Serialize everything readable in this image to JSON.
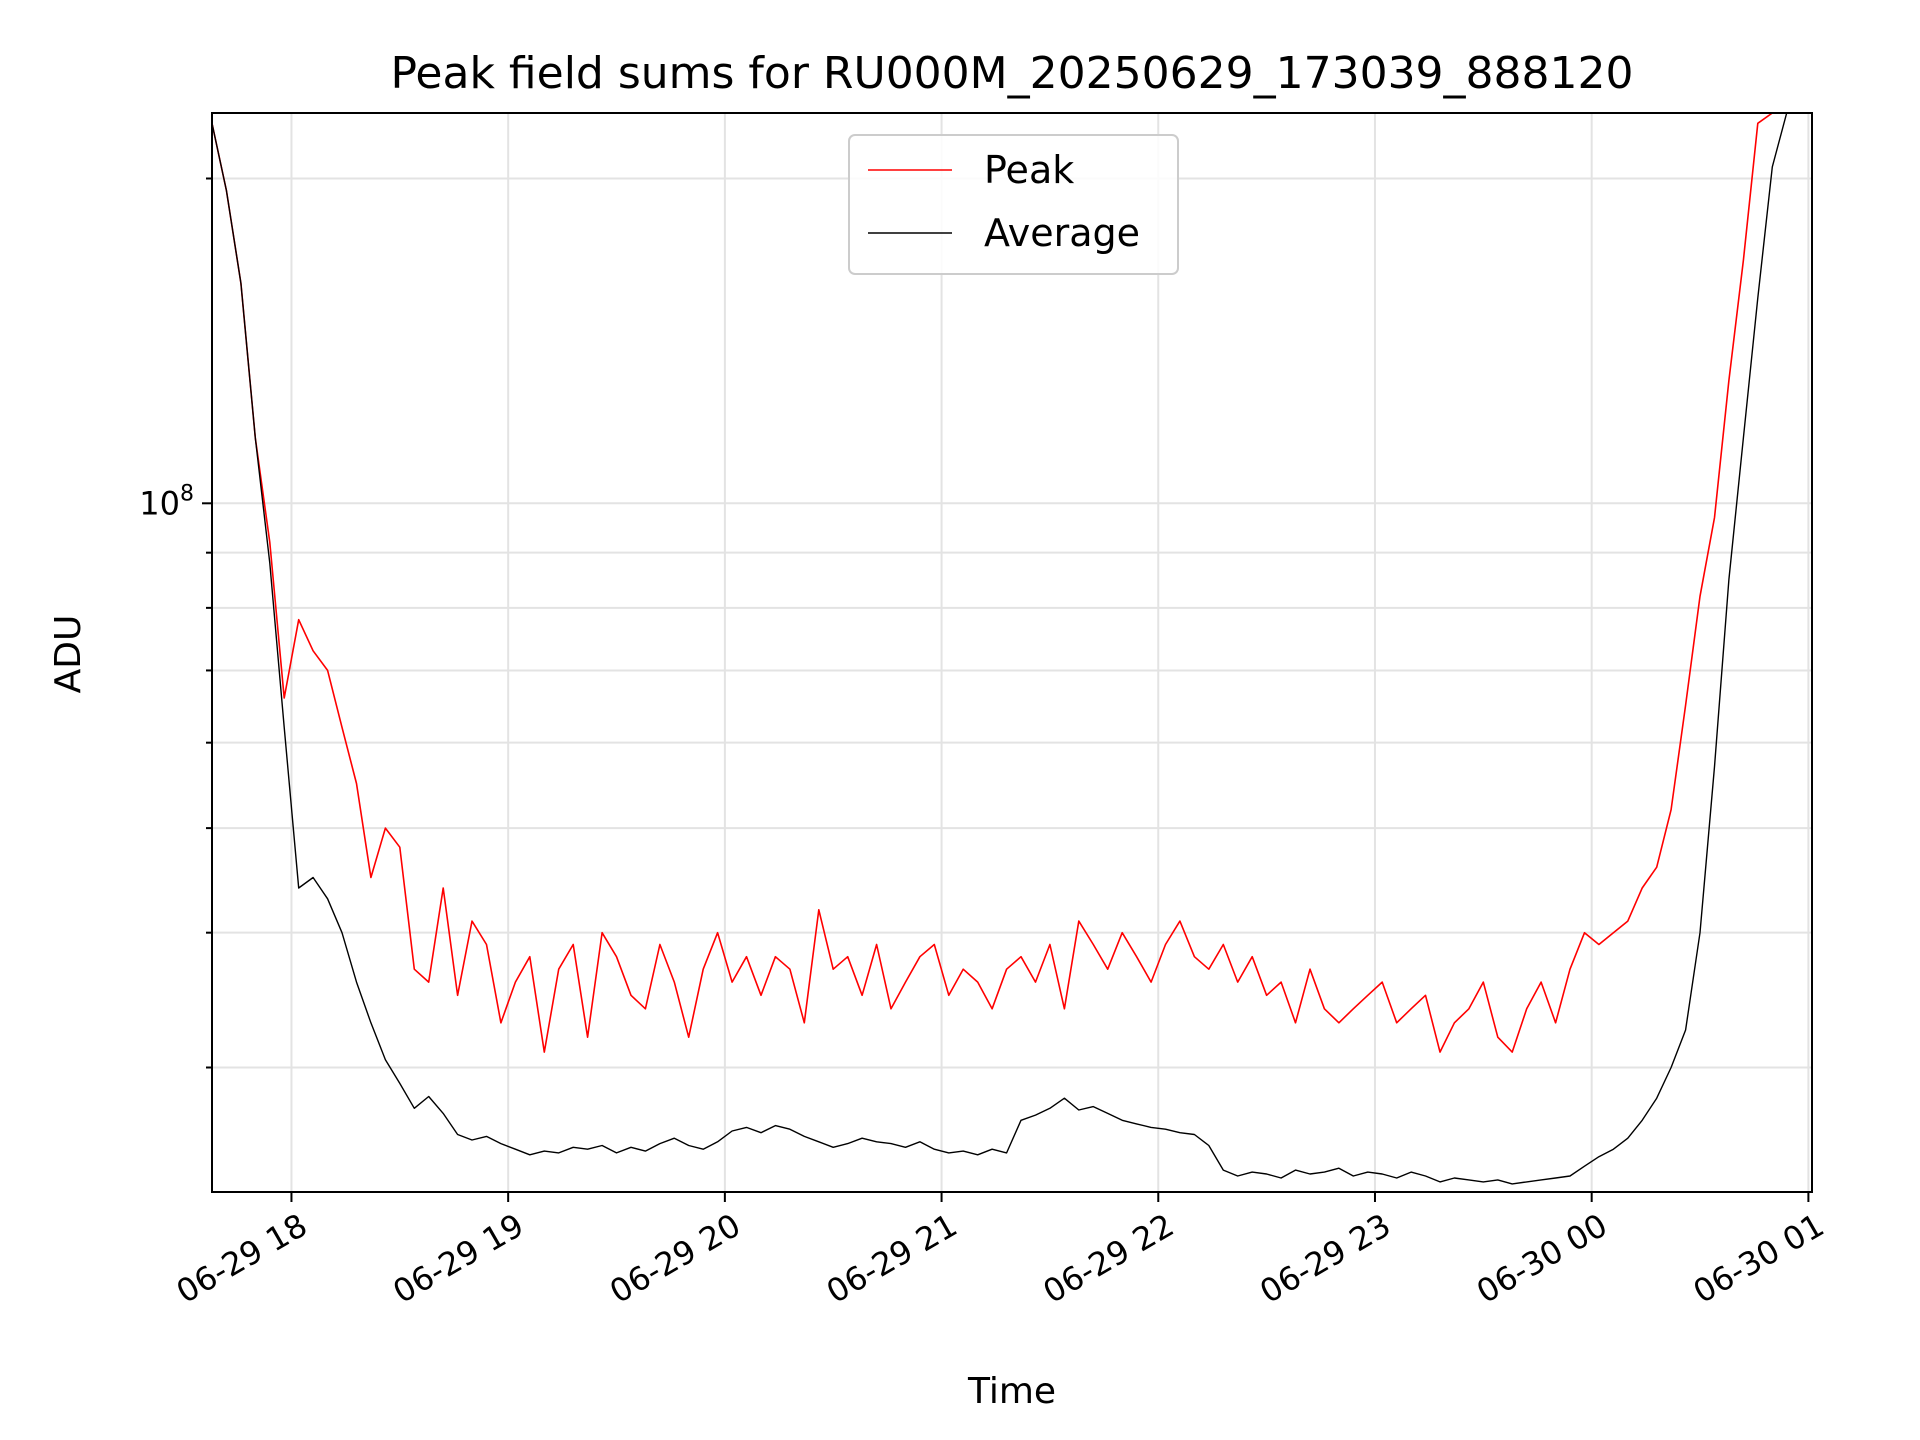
{
  "chart_data": {
    "type": "line",
    "title": "Peak field sums for RU000M_20250629_173039_888120",
    "xlabel": "Time",
    "ylabel": "ADU",
    "y_scale": "log",
    "grid": true,
    "legend_position": "upper center",
    "ylim": [
      23000000,
      230000000
    ],
    "xlim": [
      "2025-06-29 17:38",
      "2025-06-30 01:01"
    ],
    "x_ticks": [
      {
        "value": "2025-06-29 18:00",
        "label": "06-29 18"
      },
      {
        "value": "2025-06-29 19:00",
        "label": "06-29 19"
      },
      {
        "value": "2025-06-29 20:00",
        "label": "06-29 20"
      },
      {
        "value": "2025-06-29 21:00",
        "label": "06-29 21"
      },
      {
        "value": "2025-06-29 22:00",
        "label": "06-29 22"
      },
      {
        "value": "2025-06-29 23:00",
        "label": "06-29 23"
      },
      {
        "value": "2025-06-30 00:00",
        "label": "06-30 00"
      },
      {
        "value": "2025-06-30 01:00",
        "label": "06-30 01"
      }
    ],
    "y_ticks": [
      {
        "value": 100000000,
        "label": "10",
        "exponent": "8"
      }
    ],
    "series": [
      {
        "name": "Peak",
        "color": "#ff0000",
        "x": [
          "2025-06-29 17:38",
          "2025-06-29 17:42",
          "2025-06-29 17:46",
          "2025-06-29 17:50",
          "2025-06-29 17:54",
          "2025-06-29 17:58",
          "2025-06-29 18:02",
          "2025-06-29 18:06",
          "2025-06-29 18:10",
          "2025-06-29 18:14",
          "2025-06-29 18:18",
          "2025-06-29 18:22",
          "2025-06-29 18:26",
          "2025-06-29 18:30",
          "2025-06-29 18:34",
          "2025-06-29 18:38",
          "2025-06-29 18:42",
          "2025-06-29 18:46",
          "2025-06-29 18:50",
          "2025-06-29 18:54",
          "2025-06-29 18:58",
          "2025-06-29 19:02",
          "2025-06-29 19:06",
          "2025-06-29 19:10",
          "2025-06-29 19:14",
          "2025-06-29 19:18",
          "2025-06-29 19:22",
          "2025-06-29 19:26",
          "2025-06-29 19:30",
          "2025-06-29 19:34",
          "2025-06-29 19:38",
          "2025-06-29 19:42",
          "2025-06-29 19:46",
          "2025-06-29 19:50",
          "2025-06-29 19:54",
          "2025-06-29 19:58",
          "2025-06-29 20:02",
          "2025-06-29 20:06",
          "2025-06-29 20:10",
          "2025-06-29 20:14",
          "2025-06-29 20:18",
          "2025-06-29 20:22",
          "2025-06-29 20:26",
          "2025-06-29 20:30",
          "2025-06-29 20:34",
          "2025-06-29 20:38",
          "2025-06-29 20:42",
          "2025-06-29 20:46",
          "2025-06-29 20:50",
          "2025-06-29 20:54",
          "2025-06-29 20:58",
          "2025-06-29 21:02",
          "2025-06-29 21:06",
          "2025-06-29 21:10",
          "2025-06-29 21:14",
          "2025-06-29 21:18",
          "2025-06-29 21:22",
          "2025-06-29 21:26",
          "2025-06-29 21:30",
          "2025-06-29 21:34",
          "2025-06-29 21:38",
          "2025-06-29 21:42",
          "2025-06-29 21:46",
          "2025-06-29 21:50",
          "2025-06-29 21:54",
          "2025-06-29 21:58",
          "2025-06-29 22:02",
          "2025-06-29 22:06",
          "2025-06-29 22:10",
          "2025-06-29 22:14",
          "2025-06-29 22:18",
          "2025-06-29 22:22",
          "2025-06-29 22:26",
          "2025-06-29 22:30",
          "2025-06-29 22:34",
          "2025-06-29 22:38",
          "2025-06-29 22:42",
          "2025-06-29 22:46",
          "2025-06-29 22:50",
          "2025-06-29 22:54",
          "2025-06-29 22:58",
          "2025-06-29 23:02",
          "2025-06-29 23:06",
          "2025-06-29 23:10",
          "2025-06-29 23:14",
          "2025-06-29 23:18",
          "2025-06-29 23:22",
          "2025-06-29 23:26",
          "2025-06-29 23:30",
          "2025-06-29 23:34",
          "2025-06-29 23:38",
          "2025-06-29 23:42",
          "2025-06-29 23:46",
          "2025-06-29 23:50",
          "2025-06-29 23:54",
          "2025-06-29 23:58",
          "2025-06-30 00:02",
          "2025-06-30 00:06",
          "2025-06-30 00:10",
          "2025-06-30 00:14",
          "2025-06-30 00:18",
          "2025-06-30 00:22",
          "2025-06-30 00:26",
          "2025-06-30 00:30",
          "2025-06-30 00:34",
          "2025-06-30 00:38",
          "2025-06-30 00:42",
          "2025-06-30 00:46",
          "2025-06-30 00:50",
          "2025-06-30 00:54",
          "2025-06-30 00:58"
        ],
        "values": [
          225000000,
          195000000,
          160000000,
          115000000,
          92000000,
          66000000,
          78000000,
          73000000,
          70000000,
          62000000,
          55000000,
          45000000,
          50000000,
          48000000,
          37000000,
          36000000,
          44000000,
          35000000,
          41000000,
          39000000,
          33000000,
          36000000,
          38000000,
          31000000,
          37000000,
          39000000,
          32000000,
          40000000,
          38000000,
          35000000,
          34000000,
          39000000,
          36000000,
          32000000,
          37000000,
          40000000,
          36000000,
          38000000,
          35000000,
          38000000,
          37000000,
          33000000,
          42000000,
          37000000,
          38000000,
          35000000,
          39000000,
          34000000,
          36000000,
          38000000,
          39000000,
          35000000,
          37000000,
          36000000,
          34000000,
          37000000,
          38000000,
          36000000,
          39000000,
          34000000,
          41000000,
          39000000,
          37000000,
          40000000,
          38000000,
          36000000,
          39000000,
          41000000,
          38000000,
          37000000,
          39000000,
          36000000,
          38000000,
          35000000,
          36000000,
          33000000,
          37000000,
          34000000,
          33000000,
          34000000,
          35000000,
          36000000,
          33000000,
          34000000,
          35000000,
          31000000,
          33000000,
          34000000,
          36000000,
          32000000,
          31000000,
          34000000,
          36000000,
          33000000,
          37000000,
          40000000,
          39000000,
          40000000,
          41000000,
          44000000,
          46000000,
          52000000,
          65000000,
          82000000,
          97000000,
          130000000,
          168000000,
          225000000,
          230000000,
          230000000,
          230000000
        ]
      },
      {
        "name": "Average",
        "color": "#000000",
        "x": [
          "2025-06-29 17:38",
          "2025-06-29 17:42",
          "2025-06-29 17:46",
          "2025-06-29 17:50",
          "2025-06-29 17:54",
          "2025-06-29 17:58",
          "2025-06-29 18:02",
          "2025-06-29 18:06",
          "2025-06-29 18:10",
          "2025-06-29 18:14",
          "2025-06-29 18:18",
          "2025-06-29 18:22",
          "2025-06-29 18:26",
          "2025-06-29 18:30",
          "2025-06-29 18:34",
          "2025-06-29 18:38",
          "2025-06-29 18:42",
          "2025-06-29 18:46",
          "2025-06-29 18:50",
          "2025-06-29 18:54",
          "2025-06-29 18:58",
          "2025-06-29 19:02",
          "2025-06-29 19:06",
          "2025-06-29 19:10",
          "2025-06-29 19:14",
          "2025-06-29 19:18",
          "2025-06-29 19:22",
          "2025-06-29 19:26",
          "2025-06-29 19:30",
          "2025-06-29 19:34",
          "2025-06-29 19:38",
          "2025-06-29 19:42",
          "2025-06-29 19:46",
          "2025-06-29 19:50",
          "2025-06-29 19:54",
          "2025-06-29 19:58",
          "2025-06-29 20:02",
          "2025-06-29 20:06",
          "2025-06-29 20:10",
          "2025-06-29 20:14",
          "2025-06-29 20:18",
          "2025-06-29 20:22",
          "2025-06-29 20:26",
          "2025-06-29 20:30",
          "2025-06-29 20:34",
          "2025-06-29 20:38",
          "2025-06-29 20:42",
          "2025-06-29 20:46",
          "2025-06-29 20:50",
          "2025-06-29 20:54",
          "2025-06-29 20:58",
          "2025-06-29 21:02",
          "2025-06-29 21:06",
          "2025-06-29 21:10",
          "2025-06-29 21:14",
          "2025-06-29 21:18",
          "2025-06-29 21:22",
          "2025-06-29 21:26",
          "2025-06-29 21:30",
          "2025-06-29 21:34",
          "2025-06-29 21:38",
          "2025-06-29 21:42",
          "2025-06-29 21:46",
          "2025-06-29 21:50",
          "2025-06-29 21:54",
          "2025-06-29 21:58",
          "2025-06-29 22:02",
          "2025-06-29 22:06",
          "2025-06-29 22:10",
          "2025-06-29 22:14",
          "2025-06-29 22:18",
          "2025-06-29 22:22",
          "2025-06-29 22:26",
          "2025-06-29 22:30",
          "2025-06-29 22:34",
          "2025-06-29 22:38",
          "2025-06-29 22:42",
          "2025-06-29 22:46",
          "2025-06-29 22:50",
          "2025-06-29 22:54",
          "2025-06-29 22:58",
          "2025-06-29 23:02",
          "2025-06-29 23:06",
          "2025-06-29 23:10",
          "2025-06-29 23:14",
          "2025-06-29 23:18",
          "2025-06-29 23:22",
          "2025-06-29 23:26",
          "2025-06-29 23:30",
          "2025-06-29 23:34",
          "2025-06-29 23:38",
          "2025-06-29 23:42",
          "2025-06-29 23:46",
          "2025-06-29 23:50",
          "2025-06-29 23:54",
          "2025-06-29 23:58",
          "2025-06-30 00:02",
          "2025-06-30 00:06",
          "2025-06-30 00:10",
          "2025-06-30 00:14",
          "2025-06-30 00:18",
          "2025-06-30 00:22",
          "2025-06-30 00:26",
          "2025-06-30 00:30",
          "2025-06-30 00:34",
          "2025-06-30 00:38",
          "2025-06-30 00:42",
          "2025-06-30 00:46",
          "2025-06-30 00:50",
          "2025-06-30 00:54",
          "2025-06-30 00:58"
        ],
        "values": [
          225000000,
          195000000,
          160000000,
          115000000,
          88000000,
          62000000,
          44000000,
          45000000,
          43000000,
          40000000,
          36000000,
          33000000,
          30500000,
          29000000,
          27500000,
          28200000,
          27200000,
          26000000,
          25700000,
          25900000,
          25500000,
          25200000,
          24900000,
          25100000,
          25000000,
          25300000,
          25200000,
          25400000,
          25000000,
          25300000,
          25100000,
          25500000,
          25800000,
          25400000,
          25200000,
          25600000,
          26200000,
          26400000,
          26100000,
          26500000,
          26300000,
          25900000,
          25600000,
          25300000,
          25500000,
          25800000,
          25600000,
          25500000,
          25300000,
          25600000,
          25200000,
          25000000,
          25100000,
          24900000,
          25200000,
          25000000,
          26800000,
          27100000,
          27500000,
          28100000,
          27400000,
          27600000,
          27200000,
          26800000,
          26600000,
          26400000,
          26300000,
          26100000,
          26000000,
          25400000,
          24100000,
          23800000,
          24000000,
          23900000,
          23700000,
          24100000,
          23900000,
          24000000,
          24200000,
          23800000,
          24000000,
          23900000,
          23700000,
          24000000,
          23800000,
          23500000,
          23700000,
          23600000,
          23500000,
          23600000,
          23400000,
          23500000,
          23600000,
          23700000,
          23800000,
          24300000,
          24800000,
          25200000,
          25800000,
          26800000,
          28100000,
          30000000,
          32500000,
          40000000,
          57000000,
          85000000,
          115000000,
          155000000,
          205000000,
          230000000,
          230000000
        ]
      }
    ]
  }
}
